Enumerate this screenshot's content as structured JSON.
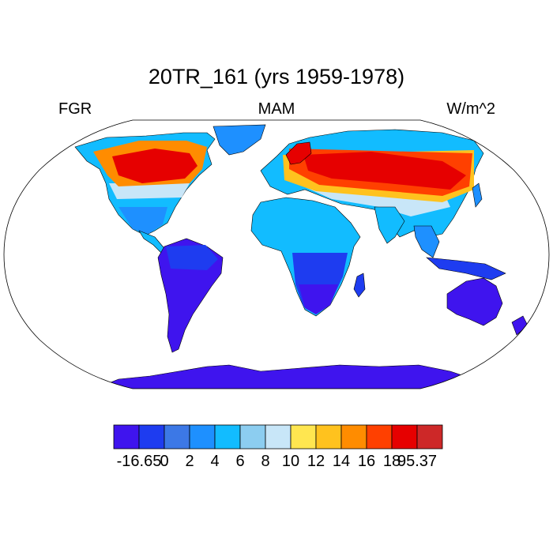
{
  "title": "20TR_161 (yrs 1959-1978)",
  "left_label": "FGR",
  "center_label": "MAM",
  "right_label": "W/m^2",
  "colorbar": {
    "colors": [
      "#3f14ee",
      "#1e3cf0",
      "#3c78e6",
      "#1e90ff",
      "#12bcff",
      "#8ccdf0",
      "#c8e6f8",
      "#ffe650",
      "#ffc21e",
      "#ff8c00",
      "#ff4000",
      "#e60000",
      "#cd2828"
    ],
    "labels": [
      "-16.65",
      "0",
      "2",
      "4",
      "6",
      "8",
      "10",
      "12",
      "14",
      "16",
      "18",
      "95.37"
    ]
  },
  "land_colors": {
    "ocean": "#ffffff",
    "coast": "#000000"
  }
}
